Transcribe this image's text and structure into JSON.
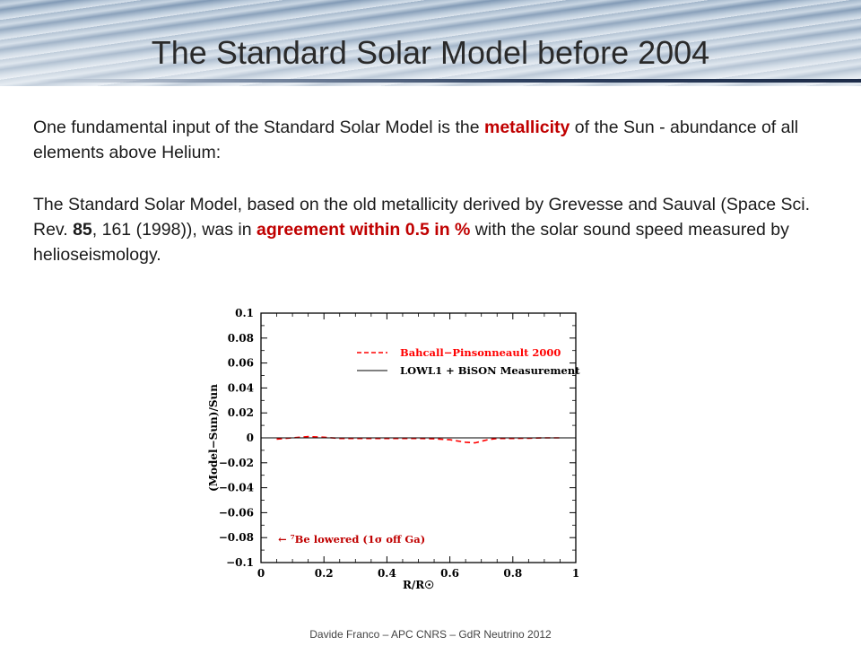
{
  "slide": {
    "title": "The Standard Solar Model before 2004",
    "footer": "Davide Franco – APC CNRS – GdR Neutrino 2012"
  },
  "paragraph1": {
    "text_a": "One fundamental input of the Standard Solar Model is the ",
    "highlight": "metallicity",
    "text_b": " of the Sun - abundance of all elements above Helium:"
  },
  "paragraph2": {
    "text_a": " The Standard Solar Model, based on the old metallicity derived by Grevesse and Sauval (Space Sci. Rev. ",
    "bold_volume": "85",
    "text_b": ", 161 (1998)), was in ",
    "highlight": "agreement within 0.5 in %",
    "text_c": " with the solar sound speed measured by helioseismology."
  },
  "colors": {
    "highlight": "#c00000",
    "model_curve": "#ff0000",
    "measurement_line": "#000000"
  },
  "chart_data": {
    "type": "line",
    "xlabel": "R/R☉",
    "ylabel": "(Model−Sun)/Sun",
    "xlim": [
      0,
      1
    ],
    "ylim": [
      -0.1,
      0.1
    ],
    "xticks": [
      "0",
      "0.2",
      "0.4",
      "0.6",
      "0.8",
      "1"
    ],
    "yticks": [
      "0.1",
      "0.08",
      "0.06",
      "0.04",
      "0.02",
      "0",
      "−0.02",
      "−0.04",
      "−0.06",
      "−0.08",
      "−0.1"
    ],
    "legend_location": "top-right",
    "annotation": "← ⁷Be lowered (1σ off Ga)",
    "series": [
      {
        "name": "Bahcall−Pinsonneault 2000",
        "style": "dashed",
        "color": "#ff0000",
        "x": [
          0.05,
          0.1,
          0.15,
          0.2,
          0.25,
          0.3,
          0.35,
          0.4,
          0.45,
          0.5,
          0.55,
          0.6,
          0.65,
          0.68,
          0.72,
          0.75,
          0.8,
          0.85,
          0.9,
          0.95
        ],
        "y": [
          -0.001,
          0.0,
          0.001,
          0.0005,
          -0.0005,
          -0.0005,
          -0.0005,
          -0.0005,
          -0.0005,
          -0.0005,
          -0.0008,
          -0.0015,
          -0.0035,
          -0.004,
          -0.0015,
          -0.0005,
          -0.0005,
          -0.0003,
          0.0,
          0.0
        ]
      },
      {
        "name": "LOWL1 + BiSON Measurement",
        "style": "solid",
        "color": "#000000",
        "x": [
          0.0,
          1.0
        ],
        "y": [
          0.0,
          0.0
        ]
      }
    ]
  }
}
